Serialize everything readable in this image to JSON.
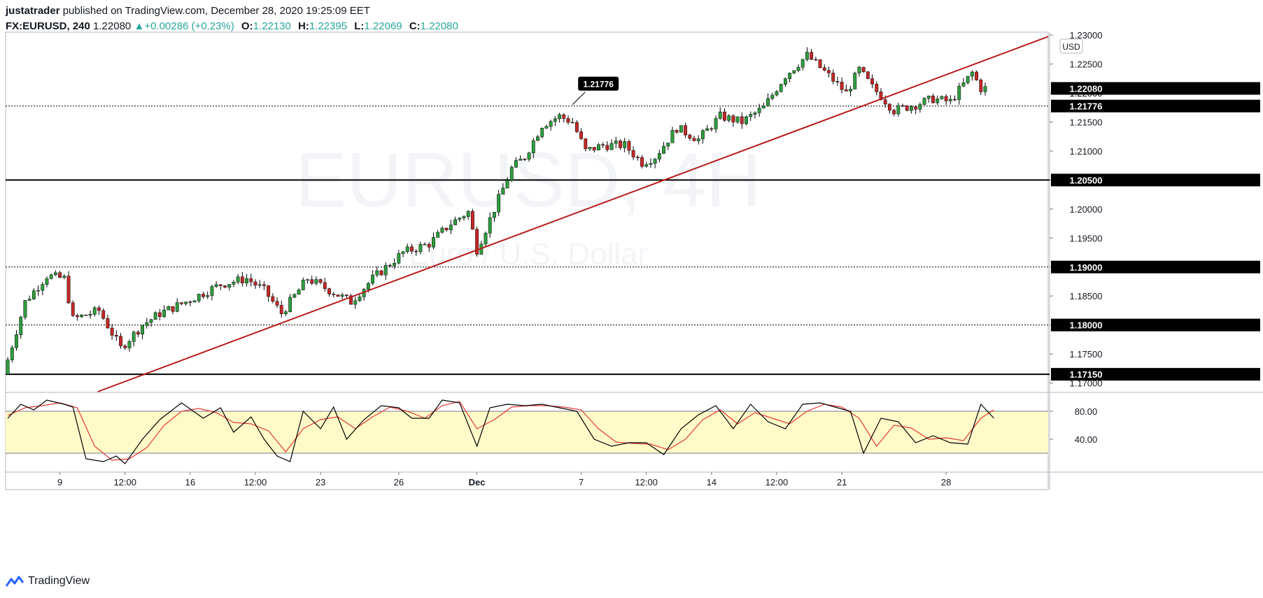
{
  "header": {
    "author": "justatrader",
    "published_text": "published on TradingView.com, December 28, 2020 19:25:09 EET",
    "symbol": "FX:EURUSD, 240",
    "last": "1.22080",
    "change_arrow": "▲",
    "change": "+0.00286 (+0.23%)",
    "o_label": "O:",
    "o_value": "1.22130",
    "h_label": "H:",
    "h_value": "1.22395",
    "l_label": "L:",
    "l_value": "1.22069",
    "c_label": "C:",
    "c_value": "1.22080"
  },
  "watermark": {
    "symbol": "EURUSD, 4H",
    "name": "Euro / U.S. Dollar"
  },
  "footer": {
    "logo_text": "TradingView",
    "logo_icon": "tradingview-logo-icon"
  },
  "colors": {
    "up": "#26a69a",
    "down": "#ef5350",
    "trendline": "#b71c1c",
    "bullish_candle": "#2e9e3e",
    "bearish_candle": "#c62828",
    "k_line": "#000000",
    "d_line": "#e53935",
    "osc_band": "#fffbc8"
  },
  "chart_data": {
    "type": "candlestick",
    "currency_badge": "USD",
    "price_axis": {
      "ylim": [
        1.1685,
        1.2305
      ],
      "ticks": [
        1.17,
        1.175,
        1.18,
        1.185,
        1.19,
        1.195,
        1.2,
        1.205,
        1.21,
        1.215,
        1.22,
        1.225,
        1.23
      ]
    },
    "tick_labels": [
      "1.17000",
      "1.17500",
      "1.18000",
      "1.18500",
      "1.19000",
      "1.19500",
      "1.20000",
      "1.20500",
      "1.21000",
      "1.21500",
      "1.22000",
      "1.22500",
      "1.23000"
    ],
    "time_axis": {
      "bar_count": 240,
      "labels": [
        {
          "text": "9",
          "bar": 12
        },
        {
          "text": "12:00",
          "bar": 27
        },
        {
          "text": "16",
          "bar": 42
        },
        {
          "text": "12:00",
          "bar": 57
        },
        {
          "text": "23",
          "bar": 72
        },
        {
          "text": "26",
          "bar": 90
        },
        {
          "text": "Dec",
          "bar": 108,
          "bold": true
        },
        {
          "text": "7",
          "bar": 132
        },
        {
          "text": "12:00",
          "bar": 147
        },
        {
          "text": "14",
          "bar": 162
        },
        {
          "text": "12:00",
          "bar": 177
        },
        {
          "text": "21",
          "bar": 192
        },
        {
          "text": "28",
          "bar": 216
        }
      ]
    },
    "horizontal_lines": [
      {
        "price": 1.205,
        "label": "1.20500",
        "style": "solid"
      },
      {
        "price": 1.1715,
        "label": "1.17150",
        "style": "solid"
      },
      {
        "price": 1.19,
        "label": "1.19000",
        "style": "dotted"
      },
      {
        "price": 1.18,
        "label": "1.18000",
        "style": "dotted"
      },
      {
        "price": 1.21776,
        "label": "1.21776",
        "style": "dotted"
      }
    ],
    "last_price_label": "1.22080",
    "last_price": 1.2208,
    "callout": {
      "text": "1.21776",
      "price": 1.21776,
      "bar": 130
    },
    "trendline": {
      "start": {
        "bar": 20,
        "price": 1.1683
      },
      "end": {
        "bar": 229,
        "price": 1.2268
      }
    },
    "waypoints": [
      [
        0,
        1.1715
      ],
      [
        5,
        1.184
      ],
      [
        10,
        1.1885
      ],
      [
        14,
        1.188
      ],
      [
        16,
        1.181
      ],
      [
        22,
        1.1825
      ],
      [
        27,
        1.176
      ],
      [
        32,
        1.18
      ],
      [
        36,
        1.182
      ],
      [
        42,
        1.184
      ],
      [
        50,
        1.187
      ],
      [
        56,
        1.188
      ],
      [
        60,
        1.186
      ],
      [
        64,
        1.182
      ],
      [
        70,
        1.188
      ],
      [
        75,
        1.186
      ],
      [
        80,
        1.184
      ],
      [
        85,
        1.188
      ],
      [
        92,
        1.1925
      ],
      [
        98,
        1.194
      ],
      [
        103,
        1.1975
      ],
      [
        107,
        1.1995
      ],
      [
        109,
        1.193
      ],
      [
        113,
        1.2
      ],
      [
        117,
        1.207
      ],
      [
        120,
        1.209
      ],
      [
        124,
        1.2145
      ],
      [
        128,
        1.216
      ],
      [
        131,
        1.215
      ],
      [
        134,
        1.21
      ],
      [
        138,
        1.211
      ],
      [
        143,
        1.211
      ],
      [
        147,
        1.208
      ],
      [
        150,
        1.209
      ],
      [
        155,
        1.214
      ],
      [
        160,
        1.212
      ],
      [
        165,
        1.216
      ],
      [
        170,
        1.215
      ],
      [
        175,
        1.2175
      ],
      [
        180,
        1.223
      ],
      [
        185,
        1.2265
      ],
      [
        190,
        1.223
      ],
      [
        194,
        1.22
      ],
      [
        197,
        1.224
      ],
      [
        200,
        1.221
      ],
      [
        202,
        1.2195
      ],
      [
        205,
        1.217
      ],
      [
        210,
        1.218
      ],
      [
        214,
        1.219
      ],
      [
        218,
        1.2185
      ],
      [
        221,
        1.2215
      ],
      [
        223,
        1.2235
      ],
      [
        225,
        1.2208
      ]
    ],
    "oscillator": {
      "type": "stochastic",
      "ylim": [
        0,
        100
      ],
      "levels": [
        20,
        80
      ],
      "tick_labels": [
        "80.00",
        "40.00"
      ],
      "k_waypoints": [
        [
          0,
          70
        ],
        [
          3,
          90
        ],
        [
          6,
          82
        ],
        [
          9,
          96
        ],
        [
          13,
          90
        ],
        [
          15,
          86
        ],
        [
          18,
          12
        ],
        [
          22,
          8
        ],
        [
          25,
          16
        ],
        [
          27,
          5
        ],
        [
          31,
          40
        ],
        [
          35,
          68
        ],
        [
          40,
          92
        ],
        [
          45,
          70
        ],
        [
          49,
          85
        ],
        [
          52,
          50
        ],
        [
          56,
          72
        ],
        [
          59,
          40
        ],
        [
          62,
          16
        ],
        [
          65,
          8
        ],
        [
          68,
          80
        ],
        [
          72,
          55
        ],
        [
          75,
          86
        ],
        [
          78,
          40
        ],
        [
          82,
          68
        ],
        [
          86,
          88
        ],
        [
          90,
          85
        ],
        [
          93,
          70
        ],
        [
          97,
          70
        ],
        [
          100,
          96
        ],
        [
          104,
          92
        ],
        [
          108,
          30
        ],
        [
          111,
          85
        ],
        [
          115,
          90
        ],
        [
          119,
          88
        ],
        [
          123,
          90
        ],
        [
          127,
          85
        ],
        [
          131,
          80
        ],
        [
          135,
          40
        ],
        [
          139,
          30
        ],
        [
          143,
          35
        ],
        [
          147,
          35
        ],
        [
          151,
          18
        ],
        [
          155,
          55
        ],
        [
          159,
          75
        ],
        [
          163,
          88
        ],
        [
          167,
          55
        ],
        [
          171,
          90
        ],
        [
          175,
          65
        ],
        [
          179,
          55
        ],
        [
          183,
          90
        ],
        [
          187,
          92
        ],
        [
          191,
          85
        ],
        [
          194,
          80
        ],
        [
          197,
          20
        ],
        [
          201,
          70
        ],
        [
          205,
          65
        ],
        [
          209,
          35
        ],
        [
          213,
          45
        ],
        [
          217,
          35
        ],
        [
          221,
          33
        ],
        [
          224,
          90
        ],
        [
          227,
          70
        ]
      ],
      "d_waypoints": [
        [
          0,
          74
        ],
        [
          4,
          85
        ],
        [
          8,
          88
        ],
        [
          12,
          92
        ],
        [
          16,
          85
        ],
        [
          20,
          30
        ],
        [
          24,
          10
        ],
        [
          28,
          12
        ],
        [
          32,
          28
        ],
        [
          36,
          60
        ],
        [
          40,
          80
        ],
        [
          44,
          84
        ],
        [
          48,
          78
        ],
        [
          52,
          64
        ],
        [
          56,
          62
        ],
        [
          60,
          52
        ],
        [
          64,
          22
        ],
        [
          68,
          55
        ],
        [
          72,
          68
        ],
        [
          76,
          72
        ],
        [
          80,
          55
        ],
        [
          84,
          72
        ],
        [
          88,
          86
        ],
        [
          92,
          80
        ],
        [
          96,
          70
        ],
        [
          100,
          88
        ],
        [
          104,
          94
        ],
        [
          108,
          55
        ],
        [
          112,
          68
        ],
        [
          116,
          86
        ],
        [
          120,
          88
        ],
        [
          124,
          88
        ],
        [
          128,
          86
        ],
        [
          132,
          82
        ],
        [
          136,
          55
        ],
        [
          140,
          36
        ],
        [
          144,
          34
        ],
        [
          148,
          33
        ],
        [
          152,
          25
        ],
        [
          156,
          40
        ],
        [
          160,
          68
        ],
        [
          164,
          82
        ],
        [
          168,
          62
        ],
        [
          172,
          78
        ],
        [
          176,
          70
        ],
        [
          180,
          62
        ],
        [
          184,
          80
        ],
        [
          188,
          90
        ],
        [
          192,
          86
        ],
        [
          196,
          70
        ],
        [
          200,
          30
        ],
        [
          204,
          60
        ],
        [
          208,
          56
        ],
        [
          212,
          40
        ],
        [
          216,
          42
        ],
        [
          220,
          38
        ],
        [
          224,
          70
        ],
        [
          227,
          82
        ]
      ]
    }
  }
}
